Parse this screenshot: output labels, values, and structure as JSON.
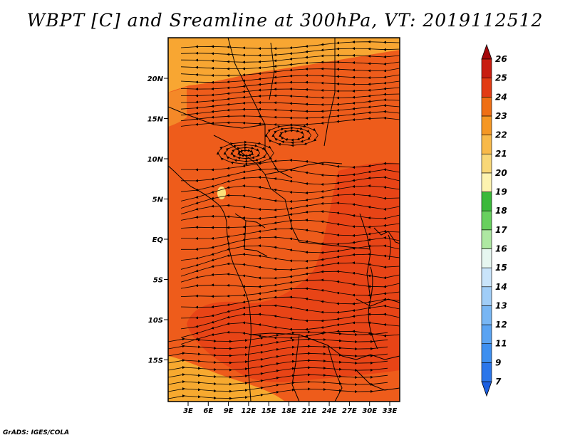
{
  "title": "WBPT [C] and Sreamline at 300hPa, VT: 2019112512",
  "credit": "GrADS: IGES/COLA",
  "map": {
    "lat_ticks": [
      "20N",
      "15N",
      "10N",
      "5N",
      "EQ",
      "5S",
      "10S",
      "15S"
    ],
    "lon_ticks": [
      "3E",
      "6E",
      "9E",
      "12E",
      "15E",
      "18E",
      "21E",
      "24E",
      "27E",
      "30E",
      "33E"
    ],
    "fill_colors": {
      "main": "#ee5c1b",
      "warm": "#e84416",
      "north_band": "#f8a632",
      "south_corner": "#f7a92f",
      "lake": "#fce07a"
    }
  },
  "colorbar": {
    "labels": [
      "7",
      "9",
      "11",
      "12",
      "13",
      "14",
      "15",
      "16",
      "17",
      "18",
      "19",
      "20",
      "21",
      "22",
      "23",
      "24",
      "25",
      "26"
    ],
    "colors": [
      "#1c5fe0",
      "#2b76ea",
      "#3d8ff0",
      "#5aa3f2",
      "#78b6f4",
      "#a0cdf7",
      "#c9e4fa",
      "#e6f6f0",
      "#aee8a2",
      "#68d05e",
      "#3bb93a",
      "#fdf3b0",
      "#f8d777",
      "#f8b949",
      "#f59723",
      "#ef6f14",
      "#e23b13",
      "#c81d10",
      "#a5070b"
    ]
  }
}
